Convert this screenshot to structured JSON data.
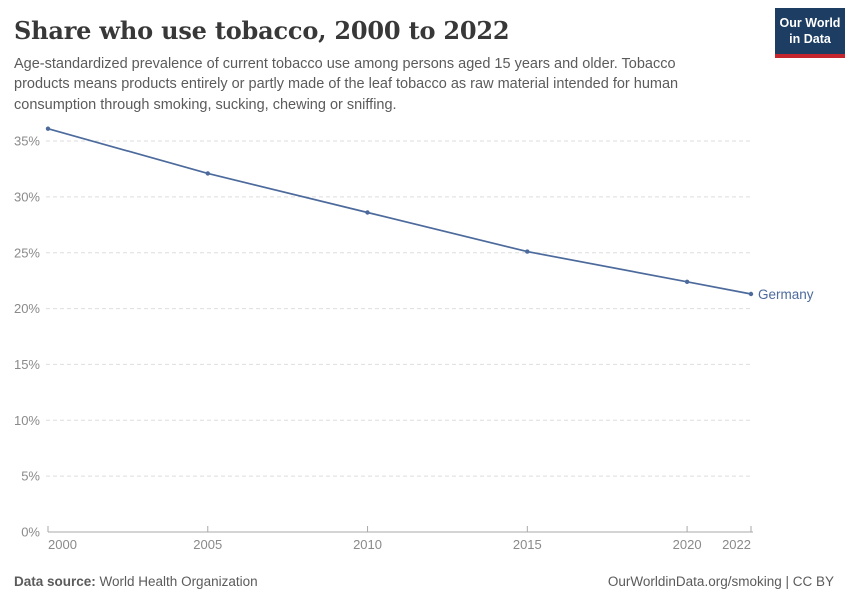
{
  "header": {
    "title": "Share who use tobacco, 2000 to 2022",
    "subtitle": "Age-standardized prevalence of current tobacco use among persons aged 15 years and older. Tobacco products means products entirely or partly made of the leaf tobacco as raw material intended for human consumption through smoking, sucking, chewing or sniffing.",
    "logo": {
      "line1": "Our World",
      "line2": "in Data",
      "bg_color": "#1d3d63",
      "accent_color": "#c5252c"
    }
  },
  "chart_data": {
    "type": "line",
    "title": "Share who use tobacco, 2000 to 2022",
    "entity": "Germany",
    "x": [
      2000,
      2005,
      2010,
      2015,
      2020,
      2022
    ],
    "values": [
      36.1,
      32.1,
      28.6,
      25.1,
      22.4,
      21.3
    ],
    "unit": "%",
    "xlabel": "",
    "ylabel": "",
    "xlim": [
      2000,
      2022
    ],
    "ylim": [
      0,
      36.5
    ],
    "yticks": [
      0,
      5,
      10,
      15,
      20,
      25,
      30,
      35
    ],
    "xticks": [
      2000,
      2005,
      2010,
      2015,
      2020,
      2022
    ],
    "grid": "horizontal dashed",
    "legend_position": "end-of-line label",
    "line_color": "#4c6a9c",
    "grid_color": "#dedede",
    "axis_color": "#a8a8a8",
    "tick_label_color": "#8a8a8a"
  },
  "footer": {
    "datasource_label": "Data source:",
    "datasource_value": " World Health Organization",
    "attribution": "OurWorldinData.org/smoking | CC BY"
  }
}
